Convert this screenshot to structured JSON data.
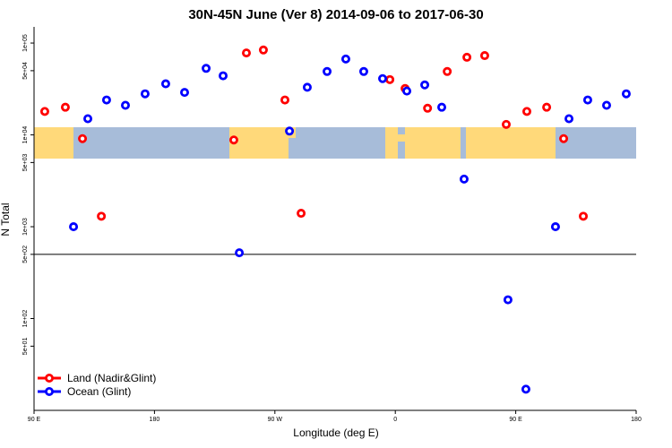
{
  "chart_data": {
    "type": "scatter",
    "title": "30N-45N June (Ver 8)   2014-09-06 to 2017-06-30",
    "x_label": "Longitude (deg E)",
    "y_label": "N Total",
    "log_y": true,
    "xlim": [
      90,
      540
    ],
    "ylim": [
      10,
      150000
    ],
    "xticks": [
      {
        "value": 90,
        "label": "90 E"
      },
      {
        "value": 180,
        "label": "180"
      },
      {
        "value": 270,
        "label": "90 W"
      },
      {
        "value": 360,
        "label": "0"
      },
      {
        "value": 450,
        "label": "90 E"
      },
      {
        "value": 540,
        "label": "180"
      }
    ],
    "yticks": [
      {
        "value": 50,
        "label": "5e+01"
      },
      {
        "value": 100,
        "label": "1e+02"
      },
      {
        "value": 500,
        "label": "5e+02"
      },
      {
        "value": 1000,
        "label": "1e+03"
      },
      {
        "value": 5000,
        "label": "5e+03"
      },
      {
        "value": 10000,
        "label": "1e+04"
      },
      {
        "value": 50000,
        "label": "5e+04"
      },
      {
        "value": 100000,
        "label": "1e+05"
      }
    ],
    "hline": 500,
    "legend": "bottom-left",
    "series": [
      {
        "name": "Land (Nadir&Glint)",
        "color": "#ff0000",
        "x": [
          98.0,
          113.4,
          126.2,
          140.3,
          239.3,
          248.7,
          261.4,
          277.5,
          289.6,
          355.9,
          367.3,
          384.1,
          398.8,
          413.5,
          426.8,
          442.9,
          458.3,
          473.1,
          485.8,
          500.5
        ],
        "values": [
          18000,
          20000,
          9100,
          1300,
          8800,
          78000,
          84000,
          24000,
          1400,
          40000,
          32000,
          19500,
          49000,
          70000,
          73000,
          13000,
          18000,
          20000,
          9100,
          1300
        ]
      },
      {
        "name": "Ocean (Glint)",
        "color": "#0000ff",
        "x": [
          119.5,
          130.2,
          144.2,
          158.3,
          173.0,
          188.4,
          202.5,
          218.6,
          231.3,
          243.4,
          280.9,
          294.2,
          309.0,
          323.0,
          336.4,
          350.5,
          368.6,
          382.0,
          394.7,
          411.4,
          444.2,
          457.6,
          479.7,
          489.8,
          503.8,
          517.9,
          532.6
        ],
        "values": [
          1000,
          15000,
          24000,
          21000,
          28000,
          36000,
          29000,
          53000,
          44000,
          520,
          11000,
          33000,
          49000,
          67000,
          49000,
          41000,
          30000,
          35000,
          20000,
          3300,
          160,
          17,
          1000,
          15000,
          24000,
          21000,
          28000
        ]
      }
    ]
  }
}
